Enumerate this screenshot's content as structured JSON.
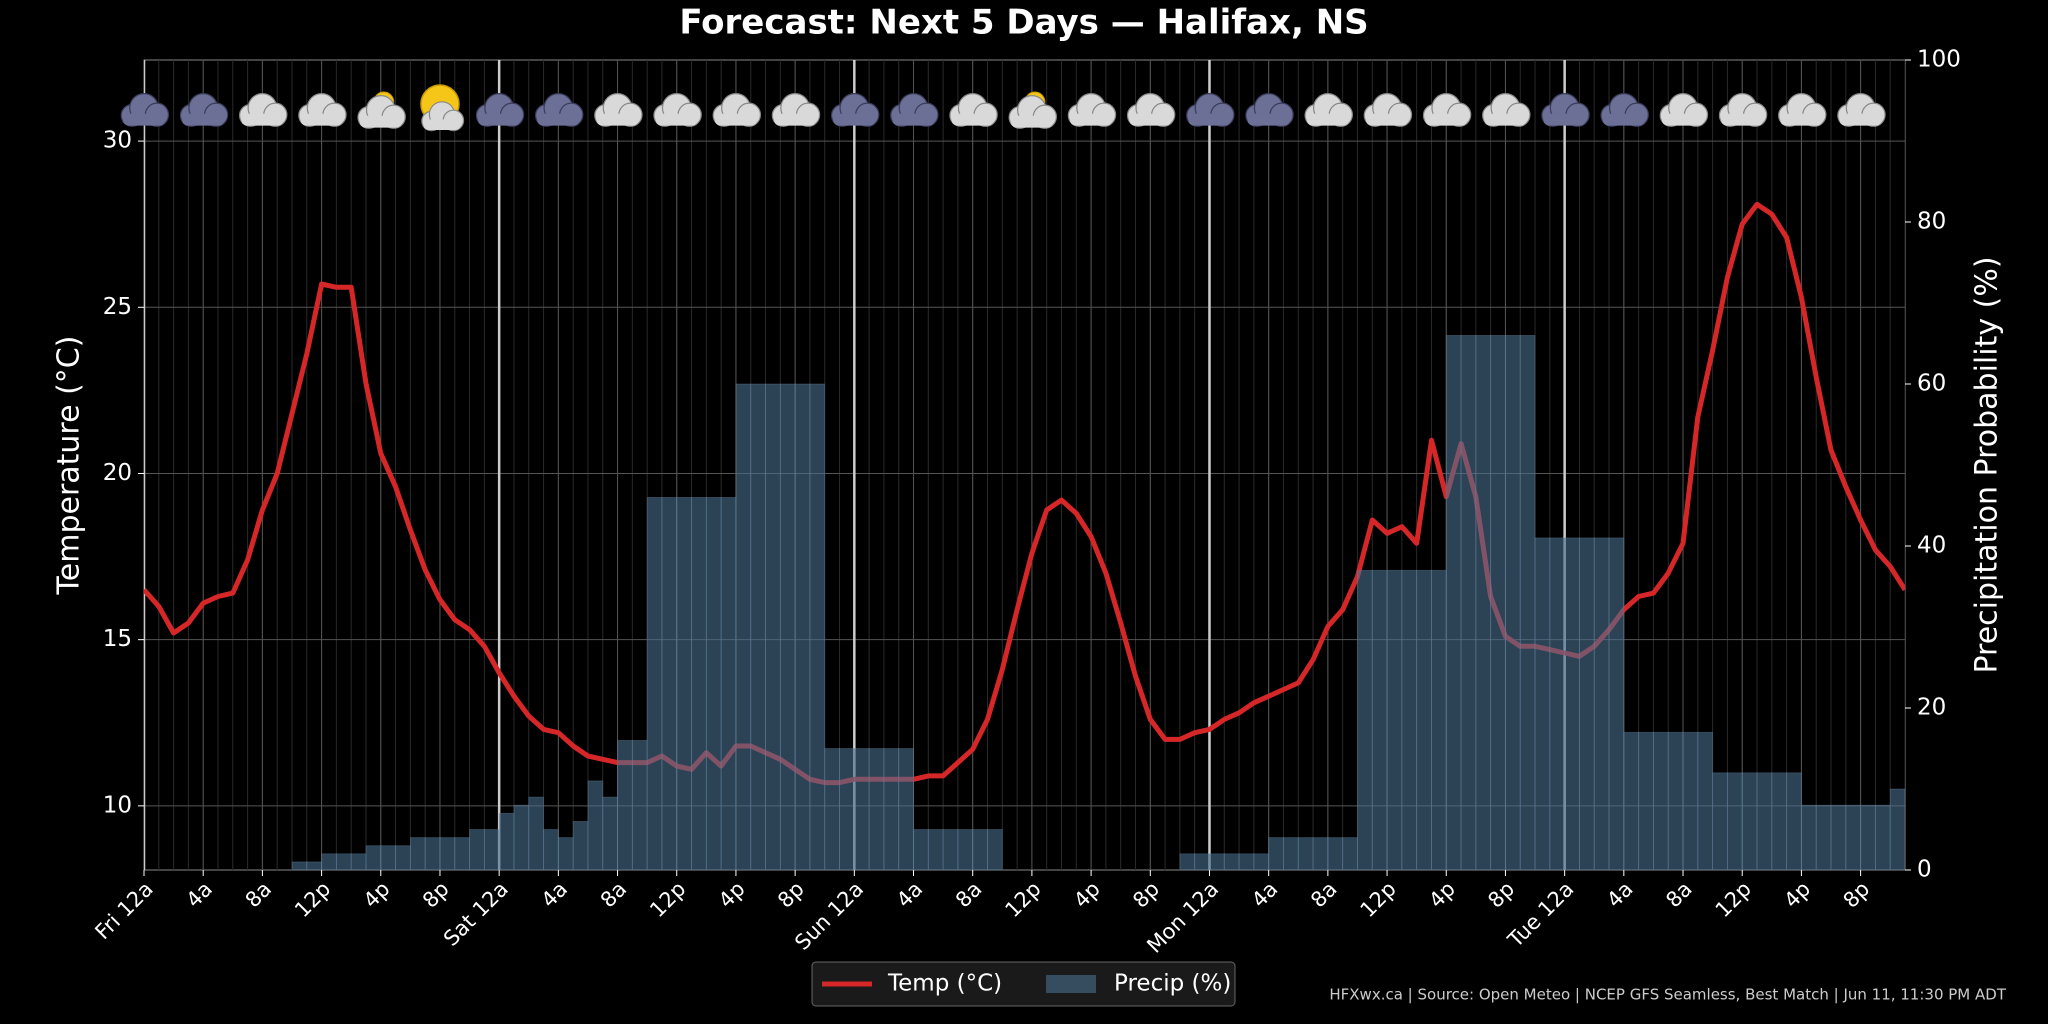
{
  "chart_data": {
    "type": "line",
    "title": "Forecast: Next 5 Days — Halifax, NS",
    "y_label": "Temperature (°C)",
    "y2_label": "Precipitation Probability (%)",
    "footer": "HFXwx.ca | Source: Open Meteo | NCEP GFS Seamless, Best Match | Jun 11, 11:30 PM ADT",
    "x": [
      0,
      1,
      2,
      3,
      4,
      5,
      6,
      7,
      8,
      9,
      10,
      11,
      12,
      13,
      14,
      15,
      16,
      17,
      18,
      19,
      20,
      21,
      22,
      23,
      24,
      25,
      26,
      27,
      28,
      29,
      30,
      31,
      32,
      33,
      34,
      35,
      36,
      37,
      38,
      39,
      40,
      41,
      42,
      43,
      44,
      45,
      46,
      47,
      48,
      49,
      50,
      51,
      52,
      53,
      54,
      55,
      56,
      57,
      58,
      59,
      60,
      61,
      62,
      63,
      64,
      65,
      66,
      67,
      68,
      69,
      70,
      71,
      72,
      73,
      74,
      75,
      76,
      77,
      78,
      79,
      80,
      81,
      82,
      83,
      84,
      85,
      86,
      87,
      88,
      89,
      90,
      91,
      92,
      93,
      94,
      95,
      96,
      97,
      98,
      99,
      100,
      101,
      102,
      103,
      104,
      105,
      106,
      107,
      108,
      109,
      110,
      111,
      112,
      113,
      114,
      115,
      116,
      117,
      118,
      119
    ],
    "xlim": [
      0,
      119
    ],
    "xticks": [
      {
        "value": 0,
        "label": "Fri 12a"
      },
      {
        "value": 4,
        "label": "4a"
      },
      {
        "value": 8,
        "label": "8a"
      },
      {
        "value": 12,
        "label": "12p"
      },
      {
        "value": 16,
        "label": "4p"
      },
      {
        "value": 20,
        "label": "8p"
      },
      {
        "value": 24,
        "label": "Sat 12a"
      },
      {
        "value": 28,
        "label": "4a"
      },
      {
        "value": 32,
        "label": "8a"
      },
      {
        "value": 36,
        "label": "12p"
      },
      {
        "value": 40,
        "label": "4p"
      },
      {
        "value": 44,
        "label": "8p"
      },
      {
        "value": 48,
        "label": "Sun 12a"
      },
      {
        "value": 52,
        "label": "4a"
      },
      {
        "value": 56,
        "label": "8a"
      },
      {
        "value": 60,
        "label": "12p"
      },
      {
        "value": 64,
        "label": "4p"
      },
      {
        "value": 68,
        "label": "8p"
      },
      {
        "value": 72,
        "label": "Mon 12a"
      },
      {
        "value": 76,
        "label": "4a"
      },
      {
        "value": 80,
        "label": "8a"
      },
      {
        "value": 84,
        "label": "12p"
      },
      {
        "value": 88,
        "label": "4p"
      },
      {
        "value": 92,
        "label": "8p"
      },
      {
        "value": 96,
        "label": "Tue 12a"
      },
      {
        "value": 100,
        "label": "4a"
      },
      {
        "value": 104,
        "label": "8a"
      },
      {
        "value": 108,
        "label": "12p"
      },
      {
        "value": 112,
        "label": "4p"
      },
      {
        "value": 116,
        "label": "8p"
      }
    ],
    "ylim": [
      8.07,
      32.44
    ],
    "yticks": [
      10,
      15,
      20,
      25,
      30
    ],
    "y2lim": [
      0,
      100
    ],
    "y2ticks": [
      0,
      20,
      40,
      60,
      80,
      100
    ],
    "grid": true,
    "series": [
      {
        "name": "Temp (°C)",
        "type": "line",
        "color": "#d62728",
        "values": [
          16.5,
          16.0,
          15.2,
          15.5,
          16.1,
          16.3,
          16.4,
          17.4,
          18.9,
          20.0,
          21.8,
          23.6,
          25.7,
          25.6,
          25.6,
          22.7,
          20.6,
          19.6,
          18.3,
          17.1,
          16.2,
          15.6,
          15.3,
          14.8,
          14.0,
          13.3,
          12.7,
          12.3,
          12.2,
          11.8,
          11.5,
          11.4,
          11.3,
          11.3,
          11.3,
          11.5,
          11.2,
          11.1,
          11.6,
          11.2,
          11.8,
          11.8,
          11.6,
          11.4,
          11.1,
          10.8,
          10.7,
          10.7,
          10.8,
          10.8,
          10.8,
          10.8,
          10.8,
          10.9,
          10.9,
          11.3,
          11.7,
          12.6,
          14.1,
          15.9,
          17.6,
          18.9,
          19.2,
          18.8,
          18.1,
          17.0,
          15.5,
          13.9,
          12.6,
          12.0,
          12.0,
          12.2,
          12.3,
          12.6,
          12.8,
          13.1,
          13.3,
          13.5,
          13.7,
          14.4,
          15.4,
          15.9,
          16.9,
          18.6,
          18.2,
          18.4,
          17.9,
          21.0,
          19.3,
          20.9,
          19.3,
          16.3,
          15.1,
          14.8,
          14.8,
          14.7,
          14.6,
          14.5,
          14.8,
          15.3,
          15.9,
          16.3,
          16.4,
          17.0,
          17.9,
          21.7,
          23.7,
          25.9,
          27.5,
          28.1,
          27.8,
          27.1,
          25.3,
          22.9,
          20.7,
          19.6,
          18.6,
          17.7,
          17.2,
          16.5
        ]
      },
      {
        "name": "Precip (%)",
        "type": "bar",
        "axis": "y2",
        "color": "#4a7090",
        "values": [
          0,
          0,
          0,
          0,
          0,
          0,
          0,
          0,
          0,
          0,
          1,
          1,
          2,
          2,
          2,
          3,
          3,
          3,
          4,
          4,
          4,
          4,
          5,
          5,
          7,
          8,
          9,
          5,
          4,
          6,
          11,
          9,
          16,
          16,
          46,
          46,
          46,
          46,
          46,
          46,
          60,
          60,
          60,
          60,
          60,
          60,
          15,
          15,
          15,
          15,
          15,
          15,
          5,
          5,
          5,
          5,
          5,
          5,
          0,
          0,
          0,
          0,
          0,
          0,
          0,
          0,
          0,
          0,
          0,
          0,
          2,
          2,
          2,
          2,
          2,
          2,
          4,
          4,
          4,
          4,
          4,
          4,
          37,
          37,
          37,
          37,
          37,
          37,
          66,
          66,
          66,
          66,
          66,
          66,
          41,
          41,
          41,
          41,
          41,
          41,
          17,
          17,
          17,
          17,
          17,
          17,
          12,
          12,
          12,
          12,
          12,
          12,
          8,
          8,
          8,
          8,
          8,
          8,
          10,
          10
        ]
      }
    ]
  }
}
